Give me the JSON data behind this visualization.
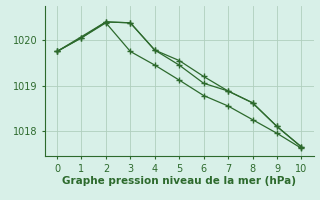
{
  "line1_x": [
    0,
    1,
    2,
    3,
    4,
    5,
    6,
    7,
    8,
    9,
    10
  ],
  "line1_y": [
    1019.75,
    1020.05,
    1020.4,
    1020.38,
    1019.78,
    1019.55,
    1019.2,
    1018.88,
    1018.62,
    1018.1,
    1017.65
  ],
  "line2_x": [
    0,
    2,
    3,
    4,
    5,
    6,
    7,
    8,
    9,
    10
  ],
  "line2_y": [
    1019.75,
    1020.4,
    1020.38,
    1019.78,
    1019.45,
    1019.05,
    1018.88,
    1018.62,
    1018.1,
    1017.65
  ],
  "line3_x": [
    0,
    1,
    2,
    3,
    4,
    5,
    6,
    7,
    8,
    9,
    10
  ],
  "line3_y": [
    1019.75,
    1020.05,
    1020.38,
    1019.75,
    1019.45,
    1019.12,
    1018.78,
    1018.55,
    1018.25,
    1017.95,
    1017.62
  ],
  "line_color": "#2d6a2d",
  "bg_color": "#d8f0e8",
  "grid_color": "#b0cfbe",
  "xlabel": "Graphe pression niveau de la mer (hPa)",
  "xlim": [
    -0.5,
    10.5
  ],
  "ylim": [
    1017.45,
    1020.75
  ],
  "yticks": [
    1018,
    1019,
    1020
  ],
  "xticks": [
    0,
    1,
    2,
    3,
    4,
    5,
    6,
    7,
    8,
    9,
    10
  ],
  "xlabel_fontsize": 7.5,
  "tick_fontsize": 7,
  "marker_size": 2.5
}
